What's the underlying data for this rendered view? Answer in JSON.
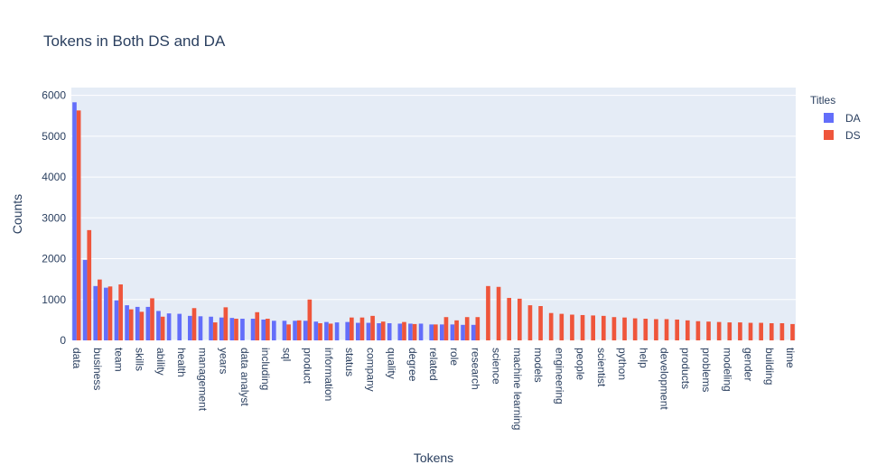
{
  "chart_data": {
    "type": "bar",
    "title": "Tokens in Both DS and DA",
    "x_label": "Tokens",
    "y_label": "Counts",
    "legend_title": "Titles",
    "categories": [
      "data",
      null,
      "business",
      null,
      "team",
      null,
      "skills",
      null,
      "ability",
      null,
      "health",
      null,
      "management",
      null,
      "years",
      null,
      "data analyst",
      null,
      "including",
      null,
      "sql",
      null,
      "product",
      null,
      "information",
      null,
      "status",
      null,
      "company",
      null,
      "quality",
      null,
      "degree",
      null,
      "related",
      null,
      "role",
      null,
      "research",
      null,
      "science",
      null,
      "machine learning",
      null,
      "models",
      null,
      "engineering",
      null,
      "people",
      null,
      "scientist",
      null,
      "python",
      null,
      "help",
      null,
      "development",
      null,
      "products",
      null,
      "problems",
      null,
      "modeling",
      null,
      "gender",
      null,
      "building",
      null,
      "time"
    ],
    "series": [
      {
        "name": "DA",
        "color": "#636efa",
        "values": [
          5830,
          1970,
          1330,
          1290,
          980,
          860,
          820,
          820,
          720,
          660,
          650,
          600,
          590,
          580,
          560,
          550,
          530,
          530,
          510,
          480,
          480,
          480,
          480,
          460,
          450,
          440,
          450,
          430,
          430,
          420,
          420,
          410,
          410,
          410,
          390,
          390,
          390,
          380,
          380,
          null,
          null,
          null,
          null,
          null,
          null,
          null,
          null,
          null,
          null,
          null,
          null,
          null,
          null,
          null,
          null,
          null,
          null,
          null,
          null,
          null,
          null,
          null,
          null,
          null,
          null,
          null,
          null,
          null,
          null
        ]
      },
      {
        "name": "DS",
        "color": "#ef553b",
        "values": [
          5630,
          2700,
          1490,
          1320,
          1370,
          760,
          700,
          1030,
          580,
          null,
          null,
          790,
          null,
          440,
          810,
          530,
          null,
          690,
          530,
          null,
          390,
          490,
          1000,
          420,
          410,
          null,
          560,
          560,
          600,
          460,
          null,
          450,
          400,
          null,
          390,
          570,
          490,
          570,
          570,
          1330,
          1310,
          1040,
          1020,
          860,
          840,
          670,
          650,
          630,
          620,
          610,
          600,
          570,
          560,
          540,
          530,
          520,
          520,
          510,
          490,
          470,
          460,
          450,
          440,
          440,
          430,
          430,
          420,
          420,
          400
        ]
      }
    ],
    "ylim": [
      0,
      6190
    ],
    "yticks": [
      0,
      1000,
      2000,
      3000,
      4000,
      5000,
      6000
    ],
    "grid": true
  }
}
